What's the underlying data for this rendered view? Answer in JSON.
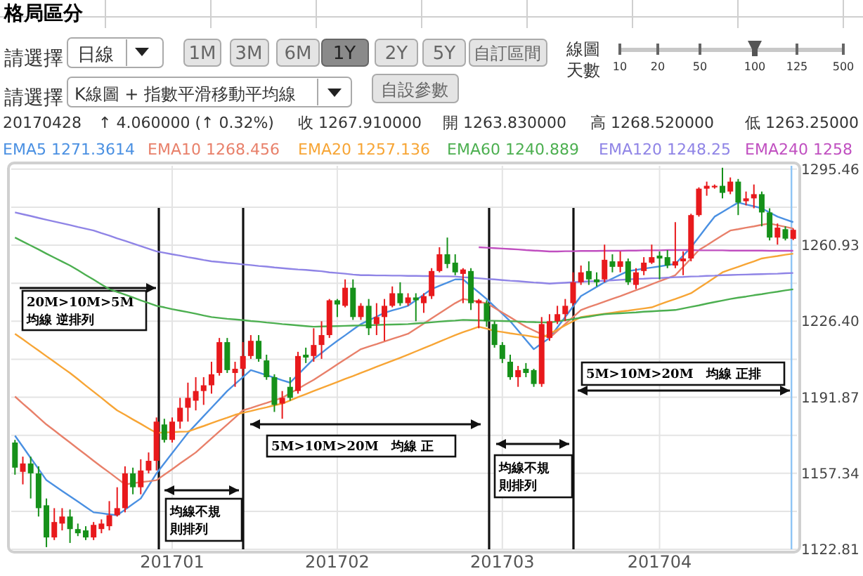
{
  "chart_data": {
    "type": "candlestick",
    "title": "格局區分",
    "categories": [
      null,
      null,
      null,
      null,
      null,
      null,
      null,
      null,
      null,
      null,
      null,
      null,
      null,
      null,
      null,
      null,
      null,
      null,
      null,
      null,
      "201701",
      null,
      null,
      null,
      null,
      null,
      null,
      null,
      null,
      null,
      null,
      null,
      null,
      null,
      null,
      null,
      null,
      null,
      null,
      null,
      null,
      "201702",
      null,
      null,
      null,
      null,
      null,
      null,
      null,
      null,
      null,
      null,
      null,
      null,
      null,
      null,
      null,
      null,
      null,
      null,
      null,
      null,
      "201703",
      null,
      null,
      null,
      null,
      null,
      null,
      null,
      null,
      null,
      null,
      null,
      null,
      null,
      null,
      null,
      null,
      null,
      null,
      null,
      "201704",
      null,
      null,
      null,
      null,
      null,
      null,
      null,
      null,
      null,
      null,
      null,
      null,
      null,
      null,
      null,
      null,
      null
    ],
    "ohlc": [
      [
        1171.3,
        1172.5,
        1156.7,
        1159.9
      ],
      [
        1158.0,
        1164.9,
        1152.3,
        1161.8
      ],
      [
        1161.8,
        1164.9,
        1145.9,
        1157.3
      ],
      [
        1157.3,
        1160.5,
        1137.7,
        1141.5
      ],
      [
        1142.8,
        1145.9,
        1123.8,
        1128.2
      ],
      [
        1128.2,
        1141.5,
        1127.0,
        1135.2
      ],
      [
        1134.5,
        1141.5,
        1131.4,
        1137.7
      ],
      [
        1137.7,
        1140.9,
        1125.7,
        1132.0
      ],
      [
        1132.0,
        1134.5,
        1128.8,
        1130.1
      ],
      [
        1131.4,
        1133.3,
        1127.0,
        1128.2
      ],
      [
        1128.2,
        1135.2,
        1127.0,
        1133.9
      ],
      [
        1132.0,
        1136.4,
        1130.1,
        1134.5
      ],
      [
        1133.3,
        1144.7,
        1131.4,
        1138.3
      ],
      [
        1138.3,
        1151.0,
        1137.7,
        1141.5
      ],
      [
        1141.5,
        1160.5,
        1139.6,
        1157.3
      ],
      [
        1157.3,
        1159.9,
        1147.8,
        1151.0
      ],
      [
        1151.0,
        1163.7,
        1147.8,
        1158.6
      ],
      [
        1158.6,
        1166.8,
        1157.3,
        1163.0
      ],
      [
        1163.0,
        1182.7,
        1158.6,
        1180.8
      ],
      [
        1179.5,
        1182.1,
        1171.3,
        1172.5
      ],
      [
        1172.5,
        1182.7,
        1171.3,
        1180.8
      ],
      [
        1180.8,
        1191.6,
        1177.6,
        1187.1
      ],
      [
        1187.1,
        1198.5,
        1180.8,
        1191.6
      ],
      [
        1190.3,
        1201.0,
        1185.9,
        1194.7
      ],
      [
        1194.7,
        1201.0,
        1188.4,
        1197.3
      ],
      [
        1197.3,
        1208.0,
        1193.5,
        1202.3
      ],
      [
        1202.9,
        1218.8,
        1201.7,
        1216.9
      ],
      [
        1216.9,
        1218.8,
        1202.9,
        1204.2
      ],
      [
        1202.9,
        1208.0,
        1196.6,
        1204.8
      ],
      [
        1204.8,
        1216.9,
        1201.7,
        1210.6
      ],
      [
        1210.6,
        1220.1,
        1209.3,
        1217.5
      ],
      [
        1217.5,
        1220.1,
        1208.0,
        1209.3
      ],
      [
        1208.6,
        1211.2,
        1199.8,
        1201.0
      ],
      [
        1201.0,
        1202.3,
        1185.2,
        1188.4
      ],
      [
        1189.0,
        1194.7,
        1182.1,
        1191.6
      ],
      [
        1196.6,
        1201.0,
        1190.3,
        1191.6
      ],
      [
        1194.7,
        1212.5,
        1193.5,
        1210.6
      ],
      [
        1211.2,
        1214.4,
        1207.4,
        1209.9
      ],
      [
        1210.6,
        1223.2,
        1208.0,
        1215.6
      ],
      [
        1215.6,
        1226.4,
        1209.3,
        1220.1
      ],
      [
        1220.1,
        1236.5,
        1218.8,
        1235.9
      ],
      [
        1235.9,
        1236.5,
        1228.3,
        1234.0
      ],
      [
        1233.4,
        1245.4,
        1232.7,
        1241.6
      ],
      [
        1241.6,
        1245.4,
        1227.0,
        1228.3
      ],
      [
        1228.3,
        1234.6,
        1227.0,
        1233.4
      ],
      [
        1233.4,
        1236.5,
        1220.1,
        1223.2
      ],
      [
        1225.1,
        1234.6,
        1220.1,
        1228.3
      ],
      [
        1228.3,
        1236.5,
        1217.5,
        1233.4
      ],
      [
        1233.4,
        1242.2,
        1232.7,
        1239.1
      ],
      [
        1239.1,
        1244.1,
        1233.4,
        1234.6
      ],
      [
        1234.6,
        1239.1,
        1233.4,
        1237.2
      ],
      [
        1237.2,
        1239.1,
        1226.4,
        1235.9
      ],
      [
        1234.6,
        1239.1,
        1230.2,
        1237.8
      ],
      [
        1237.8,
        1250.5,
        1236.5,
        1249.2
      ],
      [
        1249.2,
        1260.0,
        1248.6,
        1256.8
      ],
      [
        1256.8,
        1264.4,
        1250.5,
        1252.4
      ],
      [
        1253.0,
        1256.8,
        1247.3,
        1248.6
      ],
      [
        1247.9,
        1250.5,
        1234.6,
        1249.9
      ],
      [
        1249.2,
        1250.5,
        1231.5,
        1234.6
      ],
      [
        1234.6,
        1236.5,
        1223.2,
        1235.9
      ],
      [
        1234.6,
        1235.9,
        1223.9,
        1226.4
      ],
      [
        1225.1,
        1226.4,
        1214.4,
        1215.6
      ],
      [
        1215.6,
        1216.9,
        1207.4,
        1209.3
      ],
      [
        1208.0,
        1211.2,
        1199.8,
        1201.0
      ],
      [
        1201.0,
        1206.1,
        1196.6,
        1204.2
      ],
      [
        1204.8,
        1207.4,
        1201.0,
        1202.9
      ],
      [
        1204.2,
        1204.8,
        1196.6,
        1197.9
      ],
      [
        1197.9,
        1228.3,
        1196.6,
        1225.1
      ],
      [
        1218.8,
        1229.6,
        1217.5,
        1226.4
      ],
      [
        1226.4,
        1233.4,
        1225.1,
        1229.6
      ],
      [
        1229.6,
        1236.5,
        1226.4,
        1233.4
      ],
      [
        1234.6,
        1248.6,
        1233.4,
        1244.1
      ],
      [
        1244.1,
        1251.7,
        1242.9,
        1248.6
      ],
      [
        1249.2,
        1253.6,
        1242.9,
        1245.4
      ],
      [
        1245.4,
        1248.6,
        1242.2,
        1244.1
      ],
      [
        1245.4,
        1261.2,
        1244.1,
        1254.3
      ],
      [
        1253.6,
        1256.8,
        1248.6,
        1251.1
      ],
      [
        1251.1,
        1258.1,
        1248.6,
        1253.6
      ],
      [
        1253.6,
        1254.9,
        1242.9,
        1244.1
      ],
      [
        1242.9,
        1250.5,
        1241.0,
        1248.6
      ],
      [
        1249.2,
        1255.5,
        1247.3,
        1253.0
      ],
      [
        1253.0,
        1261.2,
        1252.4,
        1255.5
      ],
      [
        1256.2,
        1258.1,
        1245.4,
        1254.9
      ],
      [
        1255.5,
        1258.7,
        1250.5,
        1251.7
      ],
      [
        1251.7,
        1271.4,
        1250.5,
        1253.6
      ],
      [
        1253.6,
        1258.1,
        1247.3,
        1254.9
      ],
      [
        1254.9,
        1275.2,
        1253.6,
        1274.6
      ],
      [
        1274.6,
        1287.2,
        1273.9,
        1286.6
      ],
      [
        1286.6,
        1289.8,
        1283.4,
        1287.9
      ],
      [
        1287.2,
        1288.5,
        1286.6,
        1287.9
      ],
      [
        1287.9,
        1296.1,
        1282.2,
        1284.7
      ],
      [
        1285.3,
        1291.7,
        1284.1,
        1289.8
      ],
      [
        1289.8,
        1291.0,
        1274.6,
        1280.3
      ],
      [
        1280.9,
        1285.3,
        1279.0,
        1282.2
      ],
      [
        1282.2,
        1288.5,
        1277.7,
        1284.1
      ],
      [
        1284.1,
        1285.3,
        1269.5,
        1275.8
      ],
      [
        1275.8,
        1277.7,
        1263.1,
        1264.4
      ],
      [
        1264.4,
        1270.8,
        1261.2,
        1268.9
      ],
      [
        1268.2,
        1269.5,
        1263.1,
        1263.9
      ],
      [
        1263.83,
        1268.52,
        1263.25,
        1267.91
      ]
    ],
    "colors": [
      "#16911a",
      "#e8191c",
      "#16911a",
      "#16911a",
      "#16911a",
      "#e8191c",
      "#e8191c",
      "#16911a",
      "#16911a",
      "#16911a",
      "#e8191c",
      "#e8191c",
      "#e8191c",
      "#e8191c",
      "#e8191c",
      "#16911a",
      "#e8191c",
      "#e8191c",
      "#e8191c",
      "#16911a",
      "#e8191c",
      "#e8191c",
      "#e8191c",
      "#e8191c",
      "#e8191c",
      "#e8191c",
      "#e8191c",
      "#16911a",
      "#e8191c",
      "#e8191c",
      "#e8191c",
      "#16911a",
      "#16911a",
      "#16911a",
      "#e8191c",
      "#16911a",
      "#e8191c",
      "#16911a",
      "#e8191c",
      "#e8191c",
      "#e8191c",
      "#16911a",
      "#e8191c",
      "#16911a",
      "#e8191c",
      "#16911a",
      "#e8191c",
      "#e8191c",
      "#e8191c",
      "#16911a",
      "#e8191c",
      "#16911a",
      "#e8191c",
      "#e8191c",
      "#e8191c",
      "#16911a",
      "#16911a",
      "#e8191c",
      "#16911a",
      "#e8191c",
      "#16911a",
      "#16911a",
      "#16911a",
      "#16911a",
      "#e8191c",
      "#16911a",
      "#16911a",
      "#e8191c",
      "#e8191c",
      "#e8191c",
      "#e8191c",
      "#e8191c",
      "#e8191c",
      "#16911a",
      "#16911a",
      "#e8191c",
      "#16911a",
      "#e8191c",
      "#16911a",
      "#e8191c",
      "#e8191c",
      "#e8191c",
      "#16911a",
      "#16911a",
      "#e8191c",
      "#e8191c",
      "#e8191c",
      "#e8191c",
      "#e8191c",
      "#e8191c",
      "#16911a",
      "#e8191c",
      "#16911a",
      "#e8191c",
      "#e8191c",
      "#16911a",
      "#16911a",
      "#e8191c",
      "#16911a",
      "#e8191c"
    ],
    "series": [
      {
        "type": "line",
        "name": "EMA5 1271.3614",
        "color": "#4a90e2",
        "values": [
          1174.4,
          1169.4,
          1164.3,
          1159.3,
          1154.2,
          1151.8,
          1149.3,
          1146.9,
          1144.5,
          1142.0,
          1139.6,
          1139.2,
          1138.7,
          1138.3,
          1140.8,
          1143.4,
          1145.9,
          1151.6,
          1157.3,
          1161.9,
          1166.5,
          1171.1,
          1175.7,
          1179.5,
          1183.3,
          1187.1,
          1190.9,
          1194.7,
          1197.9,
          1201.0,
          1204.2,
          1203.1,
          1201.9,
          1200.8,
          1199.6,
          1198.5,
          1202.1,
          1205.7,
          1209.3,
          1212.0,
          1214.8,
          1217.5,
          1220.0,
          1222.6,
          1225.1,
          1226.8,
          1228.5,
          1230.2,
          1231.3,
          1232.3,
          1233.4,
          1235.9,
          1238.5,
          1241.0,
          1242.5,
          1243.9,
          1245.4,
          1245.4,
          1242.4,
          1239.5,
          1236.5,
          1233.1,
          1229.8,
          1226.4,
          1222.2,
          1217.9,
          1213.7,
          1216.3,
          1218.8,
          1223.6,
          1228.3,
          1233.1,
          1237.8,
          1239.9,
          1242.0,
          1244.1,
          1245.8,
          1247.5,
          1249.2,
          1249.7,
          1250.3,
          1250.8,
          1251.3,
          1251.9,
          1252.4,
          1256.2,
          1260.0,
          1264.6,
          1269.3,
          1273.9,
          1276.0,
          1278.2,
          1280.3,
          1279.4,
          1278.6,
          1277.7,
          1275.8,
          1273.9,
          1272.6,
          1271.4
        ]
      },
      {
        "type": "line",
        "name": "EMA10 1268.456",
        "color": "#e8806a",
        "values": [
          1192.2,
          1189.0,
          1185.9,
          1182.7,
          1179.5,
          1176.8,
          1174.0,
          1171.3,
          1168.5,
          1165.8,
          1163.0,
          1160.3,
          1157.7,
          1155.0,
          1152.3,
          1152.8,
          1153.3,
          1153.7,
          1154.2,
          1156.7,
          1159.2,
          1161.8,
          1164.3,
          1166.8,
          1170.0,
          1173.2,
          1176.4,
          1179.5,
          1182.7,
          1185.9,
          1187.0,
          1188.2,
          1189.3,
          1190.5,
          1191.6,
          1193.7,
          1195.7,
          1197.8,
          1199.8,
          1202.1,
          1204.4,
          1206.8,
          1209.1,
          1211.4,
          1213.7,
          1214.9,
          1216.0,
          1217.2,
          1218.4,
          1219.5,
          1220.7,
          1223.0,
          1225.3,
          1227.7,
          1230.0,
          1232.3,
          1234.6,
          1236.5,
          1235.9,
          1235.2,
          1234.6,
          1232.5,
          1230.3,
          1228.2,
          1226.0,
          1223.9,
          1222.2,
          1220.5,
          1218.8,
          1222.0,
          1225.2,
          1228.3,
          1231.5,
          1232.8,
          1234.0,
          1235.3,
          1236.6,
          1237.8,
          1239.1,
          1240.5,
          1241.8,
          1243.2,
          1244.6,
          1245.9,
          1247.3,
          1251.1,
          1254.9,
          1258.7,
          1260.9,
          1263.2,
          1265.4,
          1267.6,
          1268.2,
          1268.9,
          1269.5,
          1270.2,
          1270.8,
          1270.0,
          1269.3,
          1268.5
        ]
      },
      {
        "type": "line",
        "name": "EMA20 1257.136",
        "color": "#f7a535",
        "values": [
          1220.7,
          1218.2,
          1215.6,
          1213.1,
          1210.5,
          1208.0,
          1205.4,
          1202.9,
          1200.1,
          1197.2,
          1194.4,
          1191.6,
          1188.7,
          1185.9,
          1183.9,
          1181.8,
          1179.8,
          1177.7,
          1175.7,
          1175.9,
          1176.0,
          1176.2,
          1176.3,
          1177.6,
          1178.8,
          1180.1,
          1181.4,
          1182.6,
          1183.9,
          1184.8,
          1185.6,
          1186.5,
          1187.3,
          1188.2,
          1189.0,
          1190.4,
          1191.9,
          1193.3,
          1194.7,
          1196.1,
          1197.4,
          1198.8,
          1200.2,
          1201.5,
          1202.9,
          1204.3,
          1205.7,
          1207.1,
          1208.4,
          1209.8,
          1211.2,
          1212.7,
          1214.2,
          1215.6,
          1217.1,
          1218.6,
          1220.1,
          1221.4,
          1222.6,
          1223.9,
          1223.0,
          1222.0,
          1221.5,
          1220.9,
          1220.4,
          1219.9,
          1219.3,
          1218.8,
          1220.7,
          1222.6,
          1224.5,
          1226.4,
          1228.3,
          1228.8,
          1229.3,
          1229.8,
          1230.3,
          1230.8,
          1231.2,
          1231.7,
          1232.2,
          1232.7,
          1234.0,
          1235.3,
          1236.5,
          1237.8,
          1239.1,
          1241.5,
          1243.8,
          1246.2,
          1248.6,
          1249.9,
          1251.1,
          1252.4,
          1253.6,
          1254.9,
          1255.5,
          1256.0,
          1256.6,
          1257.1
        ]
      },
      {
        "type": "line",
        "name": "EMA60 1240.889",
        "color": "#4caf50",
        "values": [
          1264.4,
          1262.6,
          1260.8,
          1259.0,
          1257.1,
          1255.3,
          1253.5,
          1251.7,
          1249.6,
          1247.4,
          1245.3,
          1243.1,
          1241.0,
          1239.7,
          1238.5,
          1237.2,
          1235.9,
          1234.7,
          1233.4,
          1232.7,
          1231.9,
          1231.2,
          1230.5,
          1229.8,
          1229.0,
          1228.3,
          1227.9,
          1227.5,
          1227.2,
          1226.9,
          1226.5,
          1226.2,
          1225.8,
          1225.5,
          1225.1,
          1224.8,
          1224.5,
          1224.2,
          1223.9,
          1224.0,
          1224.1,
          1224.2,
          1224.3,
          1224.4,
          1224.5,
          1224.6,
          1224.7,
          1224.8,
          1224.9,
          1225.0,
          1225.1,
          1225.4,
          1225.6,
          1225.9,
          1226.2,
          1226.5,
          1226.7,
          1227.0,
          1226.9,
          1226.8,
          1226.7,
          1226.6,
          1226.5,
          1226.4,
          1226.3,
          1226.1,
          1226.0,
          1225.9,
          1225.8,
          1226.3,
          1226.9,
          1227.4,
          1228.0,
          1228.5,
          1229.1,
          1229.6,
          1229.8,
          1230.0,
          1230.2,
          1230.4,
          1230.7,
          1230.9,
          1231.1,
          1231.3,
          1231.5,
          1232.2,
          1232.9,
          1233.6,
          1234.4,
          1235.1,
          1235.8,
          1236.5,
          1237.1,
          1237.6,
          1238.2,
          1238.7,
          1239.3,
          1239.8,
          1240.4,
          1240.9
        ]
      },
      {
        "type": "line",
        "name": "EMA120 1248.25",
        "color": "#8f84e6",
        "values": [
          1275.8,
          1275.0,
          1274.2,
          1273.3,
          1272.5,
          1271.7,
          1270.9,
          1270.1,
          1269.2,
          1268.4,
          1267.6,
          1266.4,
          1265.3,
          1264.0,
          1262.9,
          1261.7,
          1260.5,
          1259.3,
          1258.1,
          1257.5,
          1256.8,
          1256.2,
          1255.5,
          1254.9,
          1254.2,
          1253.6,
          1253.3,
          1252.9,
          1252.6,
          1252.2,
          1251.9,
          1251.5,
          1251.2,
          1250.8,
          1250.5,
          1250.2,
          1249.9,
          1249.7,
          1249.4,
          1249.1,
          1248.6,
          1248.3,
          1248.0,
          1247.6,
          1247.3,
          1247.3,
          1247.2,
          1247.2,
          1247.1,
          1247.1,
          1247.0,
          1247.0,
          1246.9,
          1246.9,
          1246.8,
          1246.8,
          1246.7,
          1246.4,
          1246.2,
          1245.9,
          1245.6,
          1245.4,
          1245.1,
          1244.8,
          1244.6,
          1244.3,
          1244.0,
          1243.8,
          1243.5,
          1243.7,
          1243.9,
          1244.1,
          1244.3,
          1244.5,
          1244.6,
          1244.8,
          1245.0,
          1245.2,
          1245.4,
          1245.6,
          1245.7,
          1245.9,
          1246.0,
          1246.2,
          1246.4,
          1246.5,
          1246.7,
          1246.8,
          1247.0,
          1247.1,
          1247.3,
          1247.4,
          1247.5,
          1247.6,
          1247.7,
          1247.8,
          1247.9,
          1248.0,
          1248.2,
          1248.3
        ]
      },
      {
        "type": "line",
        "name": "EMA240 1258",
        "color": "#c04fc0",
        "values": [
          null,
          null,
          null,
          null,
          null,
          null,
          null,
          null,
          null,
          null,
          null,
          null,
          null,
          null,
          null,
          null,
          null,
          null,
          null,
          null,
          null,
          null,
          null,
          null,
          null,
          null,
          null,
          null,
          null,
          null,
          null,
          null,
          null,
          null,
          null,
          null,
          null,
          null,
          null,
          null,
          null,
          null,
          null,
          null,
          null,
          null,
          null,
          null,
          null,
          null,
          null,
          null,
          null,
          null,
          null,
          null,
          null,
          null,
          null,
          1260.0,
          1259.8,
          1259.6,
          1259.4,
          1259.2,
          1259.0,
          1258.7,
          1258.5,
          1258.3,
          1258.1,
          1258.1,
          1258.2,
          1258.2,
          1258.3,
          1258.3,
          1258.3,
          1258.4,
          1258.4,
          1258.4,
          1258.5,
          1258.5,
          1258.6,
          1258.6,
          1258.6,
          1258.7,
          1258.7,
          1258.7,
          1258.7,
          1258.6,
          1258.6,
          1258.6,
          1258.6,
          1258.5,
          1258.5,
          1258.5,
          1258.5,
          1258.5,
          1258.4,
          1258.4,
          1258.4,
          1258.4
        ]
      }
    ],
    "ylim": [
      1122.81,
      1297
    ],
    "yticks": [
      1122.81,
      {
        "value": 1140.075,
        "label": null
      },
      1157.34,
      {
        "value": 1174.605,
        "label": null
      },
      1191.87,
      {
        "value": 1209.135,
        "label": null
      },
      {
        "value": 1226.4,
        "label": "1226.40"
      },
      {
        "value": 1243.665,
        "label": null
      },
      1260.93,
      {
        "value": 1278.195,
        "label": null
      },
      1295.46
    ],
    "grid": true,
    "legend": "top",
    "marker": "none",
    "line_style": "solid",
    "annotations": [
      "20M>10M>5M 均線 逆排列",
      "均線不規則排列",
      "5M>10M>20M　均線 正",
      "均線不規則排列",
      "5M>10M>20M　均線 正排",
      "請選擇",
      "日線",
      "1M",
      "3M",
      "6M",
      "1Y",
      "2Y",
      "5Y",
      "自訂區間",
      "線圖",
      "天數",
      "10",
      "20",
      "50",
      "100",
      "125",
      "500",
      "請選擇",
      "K線圖 + 指數平滑移動平均線",
      "自設參數",
      "20170428",
      "↑ 4.060000 (↑ 0.32%)",
      "收 1267.910000",
      "開 1263.830000",
      "高 1268.520000",
      "低 1263.25000"
    ]
  }
}
